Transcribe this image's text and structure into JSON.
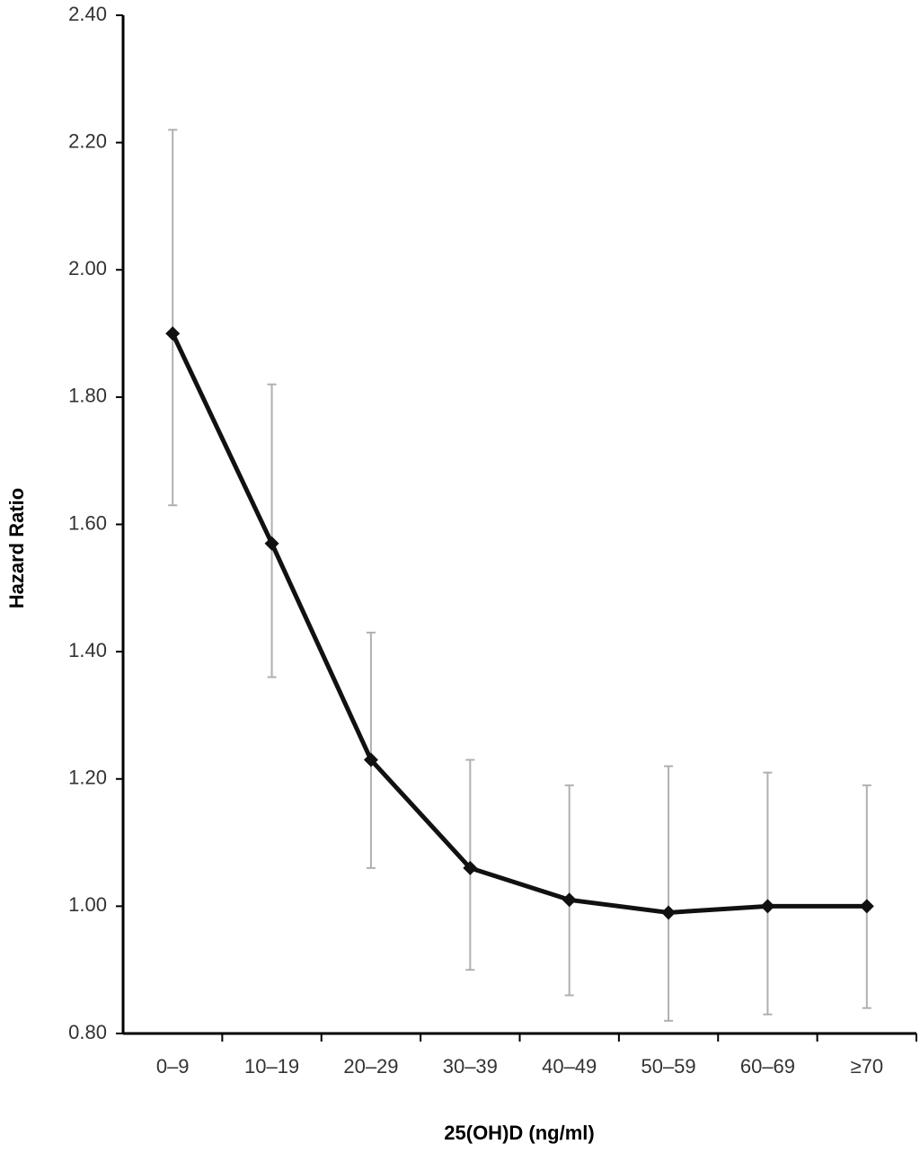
{
  "chart_data": {
    "type": "line",
    "x_label": "25(OH)D (ng/ml)",
    "y_label": "Hazard Ratio",
    "categories": [
      "0–9",
      "10–19",
      "20–29",
      "30–39",
      "40–49",
      "50–59",
      "60–69",
      "≥70"
    ],
    "values": [
      1.9,
      1.57,
      1.23,
      1.06,
      1.01,
      0.99,
      1.0,
      1.0
    ],
    "ci_lower": [
      1.63,
      1.36,
      1.06,
      0.9,
      0.86,
      0.82,
      0.83,
      0.84
    ],
    "ci_upper": [
      2.22,
      1.82,
      1.43,
      1.23,
      1.19,
      1.22,
      1.21,
      1.19
    ],
    "color": "#111111",
    "error_color": "#b0b0b0",
    "ylim": [
      0.8,
      2.4
    ],
    "yticks": [
      {
        "value": 0.8,
        "label": "0.80"
      },
      {
        "value": 1,
        "label": "1.00"
      },
      {
        "value": 1.2,
        "label": "1.20"
      },
      {
        "value": 1.4,
        "label": "1.40"
      },
      {
        "value": 1.6,
        "label": "1.60"
      },
      {
        "value": 1.8,
        "label": "1.80"
      },
      {
        "value": 2,
        "label": "2.00"
      },
      {
        "value": 2.2,
        "label": "2.20"
      },
      {
        "value": 2.4,
        "label": "2.40"
      }
    ],
    "grid": false
  }
}
